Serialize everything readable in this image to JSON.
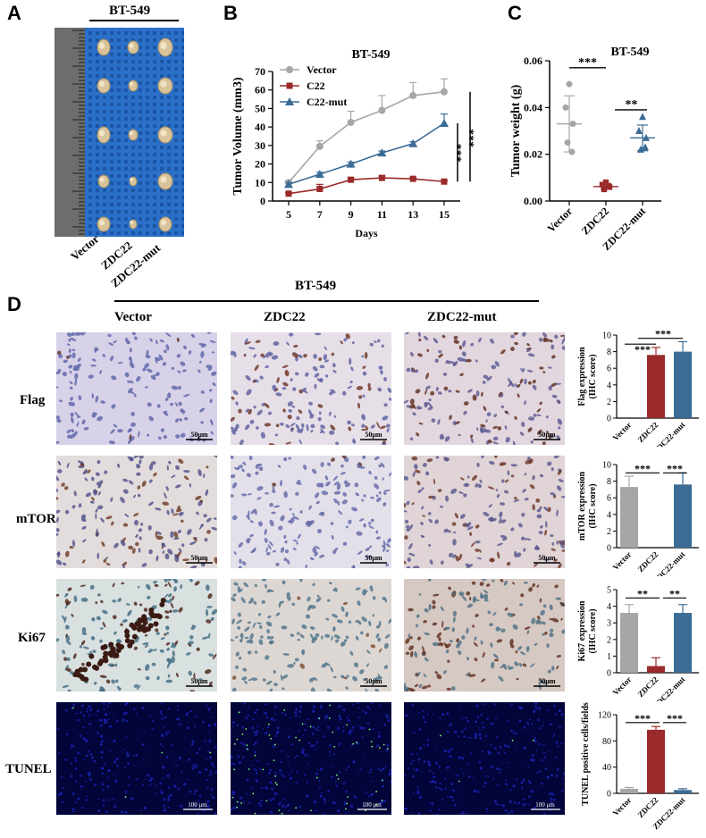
{
  "panels": {
    "A": "A",
    "B": "B",
    "C": "C",
    "D": "D"
  },
  "panelA": {
    "title": "BT-549",
    "xlabels": [
      "Vector",
      "ZDC22",
      "ZDC22-mut"
    ],
    "colors": {
      "bg": "#2a70c8",
      "ruler": "#6d6d6d"
    }
  },
  "panelB": {
    "chart_data": {
      "type": "line",
      "title": "BT-549",
      "xlabel": "Days",
      "ylabel": "Tumor Volume (mm3)",
      "x": [
        5,
        7,
        9,
        11,
        13,
        15
      ],
      "xticks": [
        "5",
        "7",
        "9",
        "11",
        "13",
        "15"
      ],
      "yticks": [
        "0",
        "10",
        "20",
        "30",
        "40",
        "50",
        "60",
        "70"
      ],
      "ylim": [
        0,
        70
      ],
      "legend_position": "top-left",
      "significance": [
        "***",
        "***"
      ],
      "series": [
        {
          "name": "Vector",
          "values": [
            10,
            29.5,
            42.5,
            49,
            57,
            59
          ],
          "errors": [
            1,
            3,
            6,
            8,
            7,
            7
          ],
          "color": "#a6a6a6",
          "marker": "circle"
        },
        {
          "name": "C22",
          "values": [
            4,
            6.5,
            11.5,
            12.5,
            12,
            10.5
          ],
          "errors": [
            0.5,
            2.5,
            1,
            1,
            0.5,
            0.5
          ],
          "color": "#9b2a2a",
          "marker": "square"
        },
        {
          "name": "C22-mut",
          "values": [
            9,
            14.5,
            20,
            26,
            31,
            42
          ],
          "errors": [
            1,
            1,
            1,
            1,
            1,
            5
          ],
          "color": "#3b6c96",
          "marker": "triangle"
        }
      ]
    }
  },
  "panelC": {
    "chart_data": {
      "type": "scatter",
      "title": "BT-549",
      "ylabel": "Tumor weight (g)",
      "categories": [
        "Vector",
        "ZDC22",
        "ZDC22-mut"
      ],
      "yticks": [
        "0.00",
        "0.02",
        "0.04",
        "0.06"
      ],
      "ylim": [
        0,
        0.06
      ],
      "significance": [
        "***",
        "**"
      ],
      "series": [
        {
          "category": "Vector",
          "points": [
            0.05,
            0.04,
            0.033,
            0.025,
            0.021
          ],
          "mean": 0.033,
          "sd": 0.012,
          "color": "#a6a6a6"
        },
        {
          "category": "ZDC22",
          "points": [
            0.008,
            0.007,
            0.006,
            0.005,
            0.0065
          ],
          "mean": 0.0062,
          "sd": 0.0012,
          "color": "#9b2a2a"
        },
        {
          "category": "ZDC22-mut",
          "points": [
            0.036,
            0.03,
            0.027,
            0.022,
            0.023
          ],
          "mean": 0.027,
          "sd": 0.0055,
          "color": "#3b6c96"
        }
      ]
    }
  },
  "panelD": {
    "title": "BT-549",
    "columns": [
      "Vector",
      "ZDC22",
      "ZDC22-mut"
    ],
    "rows": [
      "Flag",
      "mTOR",
      "Ki67",
      "TUNEL"
    ],
    "scalebars": [
      "50μm",
      "50μm",
      "50μm",
      "100 μm"
    ],
    "bar_colors": {
      "Vector": "#a6a6a6",
      "ZDC22": "#9b2a2a",
      "ZDC22-mut": "#3b6c96"
    },
    "charts": [
      {
        "type": "bar",
        "ylabel": "Flag expression",
        "ylabel2": "(IHC score)",
        "categories": [
          "Vector",
          "ZDC22",
          "ZDC22-mut"
        ],
        "values": [
          0,
          7.6,
          8.0
        ],
        "errors": [
          0,
          0.9,
          1.2
        ],
        "ylim": [
          0,
          10
        ],
        "yticks": [
          "0",
          "2",
          "4",
          "6",
          "8",
          "10"
        ],
        "significance": [
          "***",
          "***"
        ]
      },
      {
        "type": "bar",
        "ylabel": "mTOR expression",
        "ylabel2": "(IHC score)",
        "categories": [
          "Vector",
          "ZDC22",
          "ZDC22-mut"
        ],
        "values": [
          7.3,
          0,
          7.6
        ],
        "errors": [
          1.3,
          0,
          1.4
        ],
        "ylim": [
          0,
          10
        ],
        "yticks": [
          "0",
          "2",
          "4",
          "6",
          "8",
          "10"
        ],
        "significance": [
          "***",
          "***"
        ]
      },
      {
        "type": "bar",
        "ylabel": "Ki67 expression",
        "ylabel2": "(IHC score)",
        "categories": [
          "Vector",
          "ZDC22",
          "ZDC22-mut"
        ],
        "values": [
          3.6,
          0.4,
          3.6
        ],
        "errors": [
          0.5,
          0.5,
          0.5
        ],
        "ylim": [
          0,
          5
        ],
        "yticks": [
          "0",
          "1",
          "2",
          "3",
          "4",
          "5"
        ],
        "significance": [
          "**",
          "**"
        ]
      },
      {
        "type": "bar",
        "ylabel": "TUNEL positive cells/fields",
        "ylabel2": "",
        "categories": [
          "Vector",
          "ZDC22",
          "ZDC22-mut"
        ],
        "values": [
          7,
          97,
          5
        ],
        "errors": [
          2,
          5,
          2
        ],
        "ylim": [
          0,
          120
        ],
        "yticks": [
          "0",
          "40",
          "80",
          "120"
        ],
        "significance": [
          "***",
          "***"
        ]
      }
    ]
  }
}
